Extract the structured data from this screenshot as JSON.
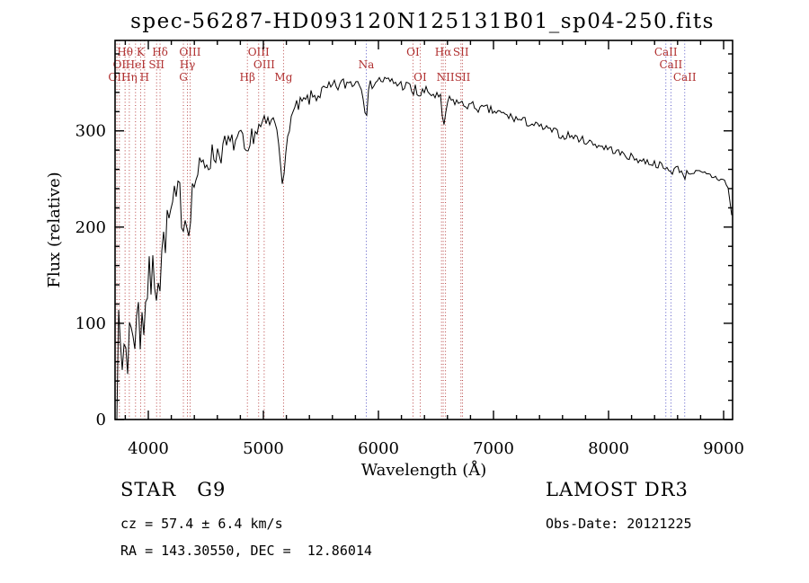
{
  "title": "spec-56287-HD093120N125131B01_sp04-250.fits",
  "footer": {
    "class_label": "STAR   G9",
    "survey": "LAMOST DR3",
    "cz": "cz = 57.4 ± 6.4 km/s",
    "obs_date": "Obs-Date: 20121225",
    "ra_dec": "RA = 143.30550, DEC =  12.86014"
  },
  "chart_data": {
    "type": "line",
    "title": "spec-56287-HD093120N125131B01_sp04-250.fits",
    "xlabel": "Wavelength (Å)",
    "ylabel": "Flux (relative)",
    "xlim": [
      3711,
      9078
    ],
    "ylim": [
      0,
      394
    ],
    "x_ticks": [
      "4000",
      "5000",
      "6000",
      "7000",
      "8000",
      "9000"
    ],
    "x_tick_values": [
      4000,
      5000,
      6000,
      7000,
      8000,
      9000
    ],
    "x_minor_step": 200,
    "y_ticks": [
      "0",
      "100",
      "200",
      "300"
    ],
    "y_tick_values": [
      0,
      100,
      200,
      300
    ],
    "y_minor_step": 20,
    "grid": false,
    "legend": "none",
    "series_color": "#000000",
    "label_color": "#b03030",
    "line_palette": {
      "red": "#b03030",
      "blue": "#4545c0"
    },
    "spectral_lines": [
      {
        "label": "Hθ",
        "wavelength": 3798,
        "row": 0,
        "color": "red"
      },
      {
        "label": "K",
        "wavelength": 3933,
        "row": 0,
        "color": "red"
      },
      {
        "label": "Hδ",
        "wavelength": 4102,
        "row": 0,
        "color": "red"
      },
      {
        "label": "OIII",
        "wavelength": 4363,
        "row": 0,
        "color": "red"
      },
      {
        "label": "OIII",
        "wavelength": 4959,
        "row": 0,
        "color": "red"
      },
      {
        "label": "OI",
        "wavelength": 6300,
        "row": 0,
        "color": "red"
      },
      {
        "label": "Hα",
        "wavelength": 6563,
        "row": 0,
        "color": "red"
      },
      {
        "label": "SII",
        "wavelength": 6717,
        "row": 0,
        "color": "red"
      },
      {
        "label": "CaII",
        "wavelength": 8498,
        "row": 0,
        "color": "blue"
      },
      {
        "label": "OI",
        "wavelength": 3749,
        "row": 1,
        "color": "red"
      },
      {
        "label": "HeI",
        "wavelength": 3889,
        "row": 1,
        "color": "red"
      },
      {
        "label": "SII",
        "wavelength": 4072,
        "row": 1,
        "color": "red"
      },
      {
        "label": "Hγ",
        "wavelength": 4340,
        "row": 1,
        "color": "red"
      },
      {
        "label": "OIII",
        "wavelength": 5007,
        "row": 1,
        "color": "red"
      },
      {
        "label": "Na",
        "wavelength": 5894,
        "row": 1,
        "color": "blue"
      },
      {
        "label": "CaII",
        "wavelength": 8542,
        "row": 1,
        "color": "blue"
      },
      {
        "label": "OII",
        "wavelength": 3727,
        "row": 2,
        "color": "red"
      },
      {
        "label": "Hη",
        "wavelength": 3835,
        "row": 2,
        "color": "red"
      },
      {
        "label": "H",
        "wavelength": 3968,
        "row": 2,
        "color": "red"
      },
      {
        "label": "G",
        "wavelength": 4305,
        "row": 2,
        "color": "red"
      },
      {
        "label": "Hβ",
        "wavelength": 4861,
        "row": 2,
        "color": "red"
      },
      {
        "label": "Mg",
        "wavelength": 5175,
        "row": 2,
        "color": "red"
      },
      {
        "label": "OI",
        "wavelength": 6363,
        "row": 2,
        "color": "red"
      },
      {
        "label": "",
        "wavelength": 6548,
        "row": 2,
        "color": "red"
      },
      {
        "label": "NII",
        "wavelength": 6583,
        "row": 2,
        "color": "red"
      },
      {
        "label": "SII",
        "wavelength": 6731,
        "row": 2,
        "color": "red"
      },
      {
        "label": "CaII",
        "wavelength": 8662,
        "row": 2,
        "color": "blue"
      }
    ],
    "envelope": [
      [
        3711,
        5
      ],
      [
        3720,
        55
      ],
      [
        3730,
        15
      ],
      [
        3742,
        75
      ],
      [
        3752,
        30
      ],
      [
        3762,
        85
      ],
      [
        3775,
        45
      ],
      [
        3788,
        90
      ],
      [
        3798,
        55
      ],
      [
        3810,
        95
      ],
      [
        3822,
        65
      ],
      [
        3835,
        100
      ],
      [
        3848,
        70
      ],
      [
        3862,
        115
      ],
      [
        3875,
        80
      ],
      [
        3889,
        105
      ],
      [
        3900,
        90
      ],
      [
        3912,
        125
      ],
      [
        3925,
        100
      ],
      [
        3933,
        85
      ],
      [
        3945,
        120
      ],
      [
        3955,
        105
      ],
      [
        3968,
        95
      ],
      [
        3980,
        130
      ],
      [
        3995,
        140
      ],
      [
        4010,
        150
      ],
      [
        4025,
        140
      ],
      [
        4040,
        155
      ],
      [
        4055,
        150
      ],
      [
        4072,
        138
      ],
      [
        4088,
        160
      ],
      [
        4102,
        142
      ],
      [
        4118,
        175
      ],
      [
        4135,
        185
      ],
      [
        4155,
        195
      ],
      [
        4175,
        205
      ],
      [
        4200,
        215
      ],
      [
        4225,
        222
      ],
      [
        4250,
        228
      ],
      [
        4275,
        232
      ],
      [
        4305,
        205
      ],
      [
        4322,
        212
      ],
      [
        4340,
        198
      ],
      [
        4363,
        212
      ],
      [
        4385,
        240
      ],
      [
        4410,
        250
      ],
      [
        4440,
        258
      ],
      [
        4470,
        263
      ],
      [
        4500,
        268
      ],
      [
        4540,
        272
      ],
      [
        4580,
        276
      ],
      [
        4620,
        279
      ],
      [
        4660,
        282
      ],
      [
        4700,
        285
      ],
      [
        4740,
        288
      ],
      [
        4780,
        291
      ],
      [
        4820,
        290
      ],
      [
        4861,
        263
      ],
      [
        4895,
        295
      ],
      [
        4930,
        299
      ],
      [
        4960,
        302
      ],
      [
        5000,
        305
      ],
      [
        5040,
        307
      ],
      [
        5080,
        309
      ],
      [
        5120,
        305
      ],
      [
        5155,
        270
      ],
      [
        5175,
        238
      ],
      [
        5195,
        270
      ],
      [
        5220,
        305
      ],
      [
        5255,
        318
      ],
      [
        5290,
        324
      ],
      [
        5330,
        328
      ],
      [
        5370,
        331
      ],
      [
        5410,
        334
      ],
      [
        5450,
        336
      ],
      [
        5490,
        339
      ],
      [
        5530,
        341
      ],
      [
        5570,
        343
      ],
      [
        5610,
        345
      ],
      [
        5650,
        347
      ],
      [
        5690,
        348
      ],
      [
        5730,
        350
      ],
      [
        5770,
        351
      ],
      [
        5810,
        352
      ],
      [
        5850,
        350
      ],
      [
        5894,
        316
      ],
      [
        5920,
        345
      ],
      [
        5950,
        350
      ],
      [
        5985,
        352
      ],
      [
        6020,
        353
      ],
      [
        6060,
        352
      ],
      [
        6100,
        351
      ],
      [
        6145,
        350
      ],
      [
        6190,
        348
      ],
      [
        6235,
        347
      ],
      [
        6280,
        345
      ],
      [
        6300,
        338
      ],
      [
        6320,
        343
      ],
      [
        6363,
        336
      ],
      [
        6390,
        341
      ],
      [
        6430,
        340
      ],
      [
        6470,
        338
      ],
      [
        6510,
        336
      ],
      [
        6540,
        333
      ],
      [
        6563,
        300
      ],
      [
        6585,
        320
      ],
      [
        6610,
        332
      ],
      [
        6650,
        331
      ],
      [
        6690,
        330
      ],
      [
        6731,
        327
      ],
      [
        6770,
        327
      ],
      [
        6810,
        326
      ],
      [
        6850,
        325
      ],
      [
        6890,
        322
      ],
      [
        6930,
        323
      ],
      [
        6970,
        321
      ],
      [
        7010,
        320
      ],
      [
        7060,
        318
      ],
      [
        7110,
        316
      ],
      [
        7160,
        314
      ],
      [
        7210,
        312
      ],
      [
        7260,
        310
      ],
      [
        7310,
        308
      ],
      [
        7360,
        306
      ],
      [
        7410,
        304
      ],
      [
        7460,
        302
      ],
      [
        7510,
        300
      ],
      [
        7560,
        298
      ],
      [
        7600,
        293
      ],
      [
        7640,
        296
      ],
      [
        7690,
        294
      ],
      [
        7740,
        292
      ],
      [
        7790,
        290
      ],
      [
        7840,
        288
      ],
      [
        7890,
        286
      ],
      [
        7940,
        284
      ],
      [
        7990,
        282
      ],
      [
        8040,
        280
      ],
      [
        8090,
        277
      ],
      [
        8140,
        275
      ],
      [
        8190,
        273
      ],
      [
        8240,
        271
      ],
      [
        8290,
        269
      ],
      [
        8340,
        268
      ],
      [
        8390,
        266
      ],
      [
        8440,
        265
      ],
      [
        8498,
        259
      ],
      [
        8520,
        262
      ],
      [
        8542,
        257
      ],
      [
        8580,
        261
      ],
      [
        8620,
        260
      ],
      [
        8662,
        253
      ],
      [
        8700,
        258
      ],
      [
        8740,
        257
      ],
      [
        8780,
        256
      ],
      [
        8820,
        255
      ],
      [
        8860,
        254
      ],
      [
        8900,
        253
      ],
      [
        8940,
        251
      ],
      [
        8975,
        250
      ],
      [
        9005,
        248
      ],
      [
        9030,
        243
      ],
      [
        9048,
        235
      ],
      [
        9062,
        222
      ],
      [
        9072,
        208
      ],
      [
        9078,
        195
      ]
    ],
    "noise": {
      "seed": 7,
      "regions": [
        [
          3711,
          3830,
          42
        ],
        [
          3830,
          4000,
          30
        ],
        [
          4000,
          4300,
          22
        ],
        [
          4300,
          4700,
          15
        ],
        [
          4700,
          5200,
          11
        ],
        [
          5200,
          5800,
          8
        ],
        [
          5800,
          6500,
          6
        ],
        [
          6500,
          7300,
          5
        ],
        [
          7300,
          9078,
          4
        ]
      ]
    }
  }
}
